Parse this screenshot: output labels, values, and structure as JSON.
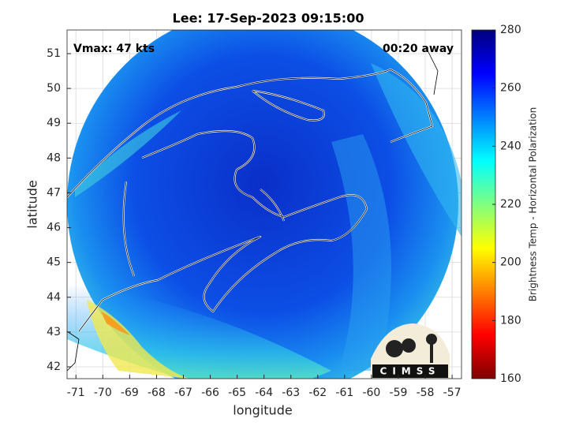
{
  "title": "Lee: 17-Sep-2023 09:15:00",
  "annotations": {
    "vmax": "Vmax: 47 kts",
    "time_away": "00:20 away"
  },
  "x_axis": {
    "label": "longitude",
    "lim": [
      -71.33,
      -56.65
    ],
    "ticks": [
      -71,
      -70,
      -69,
      -68,
      -67,
      -66,
      -65,
      -64,
      -63,
      -62,
      -61,
      -60,
      -59,
      -58,
      -57
    ]
  },
  "y_axis": {
    "label": "latitude",
    "lim": [
      41.66,
      51.68
    ],
    "ticks": [
      42,
      43,
      44,
      45,
      46,
      47,
      48,
      49,
      50,
      51
    ]
  },
  "colorbar": {
    "label": "Brightness Temp - Horizontal Polarization",
    "lim": [
      160,
      280
    ],
    "ticks": [
      160,
      180,
      200,
      220,
      240,
      260,
      280
    ]
  },
  "logo": "CIMSS"
}
